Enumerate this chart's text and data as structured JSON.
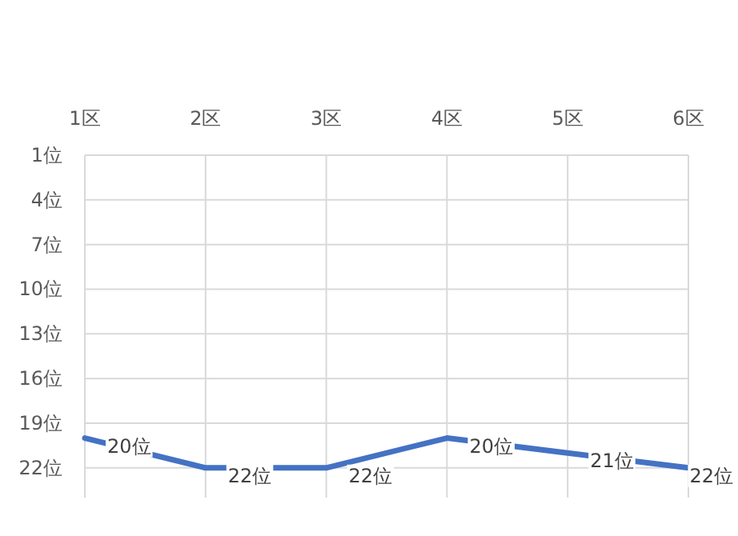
{
  "chart_data": {
    "type": "line",
    "categories": [
      "1区",
      "2区",
      "3区",
      "4区",
      "5区",
      "6区"
    ],
    "series": [
      {
        "color": "#4472c4",
        "values": [
          20,
          22,
          22,
          20,
          21,
          22
        ],
        "value_labels": [
          "20位",
          "22位",
          "22位",
          "20位",
          "21位",
          "22位"
        ]
      }
    ],
    "ylim": [
      24,
      1
    ],
    "yticks": [
      {
        "value": 1,
        "label": "1位"
      },
      {
        "value": 4,
        "label": "4位"
      },
      {
        "value": 7,
        "label": "7位"
      },
      {
        "value": 10,
        "label": "10位"
      },
      {
        "value": 13,
        "label": "13位"
      },
      {
        "value": 16,
        "label": "16位"
      },
      {
        "value": 19,
        "label": "19位"
      },
      {
        "value": 22,
        "label": "22位"
      }
    ],
    "grid": true,
    "marker": "none",
    "line_style": "solid"
  }
}
